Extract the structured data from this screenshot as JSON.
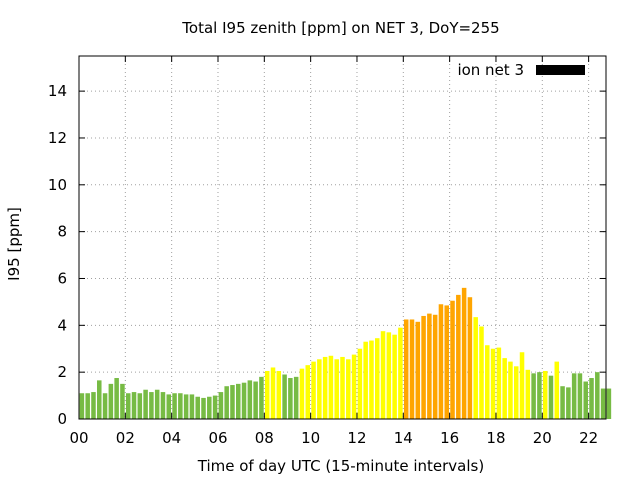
{
  "chart_data": {
    "type": "bar",
    "title": "Total I95 zenith [ppm] on NET 3, DoY=255",
    "xlabel": "Time of day UTC (15-minute intervals)",
    "ylabel": "I95 [ppm]",
    "xlim": [
      0,
      22.75
    ],
    "ylim": [
      0,
      15.5
    ],
    "x_ticks": [
      "00",
      "02",
      "04",
      "06",
      "08",
      "10",
      "12",
      "14",
      "16",
      "18",
      "20",
      "22"
    ],
    "y_ticks": [
      "0",
      "2",
      "4",
      "6",
      "8",
      "10",
      "12",
      "14"
    ],
    "grid": true,
    "legend_position": "top-right",
    "series": [
      {
        "name": "ion net 3",
        "legend_color": "#000000",
        "values": [
          1.1,
          1.1,
          1.15,
          1.65,
          1.1,
          1.5,
          1.75,
          1.5,
          1.1,
          1.15,
          1.1,
          1.25,
          1.15,
          1.25,
          1.15,
          1.05,
          1.1,
          1.1,
          1.05,
          1.05,
          0.95,
          0.9,
          0.95,
          1.0,
          1.15,
          1.4,
          1.45,
          1.5,
          1.55,
          1.65,
          1.6,
          1.8,
          2.05,
          2.2,
          2.05,
          1.9,
          1.75,
          1.8,
          2.15,
          2.3,
          2.45,
          2.55,
          2.65,
          2.7,
          2.55,
          2.65,
          2.55,
          2.75,
          3.0,
          3.3,
          3.35,
          3.45,
          3.75,
          3.7,
          3.6,
          3.9,
          4.25,
          4.25,
          4.15,
          4.4,
          4.5,
          4.45,
          4.9,
          4.85,
          5.05,
          5.3,
          5.6,
          5.2,
          4.35,
          3.95,
          3.15,
          3.0,
          3.05,
          2.6,
          2.45,
          2.25,
          2.85,
          2.1,
          1.95,
          2.0,
          2.05,
          1.85,
          2.45,
          1.4,
          1.35,
          1.95,
          1.95,
          1.6,
          1.75,
          2.0,
          1.3,
          1.3
        ],
        "colors": [
          "#77bb44",
          "#77bb44",
          "#77bb44",
          "#77bb44",
          "#77bb44",
          "#77bb44",
          "#77bb44",
          "#77bb44",
          "#77bb44",
          "#77bb44",
          "#77bb44",
          "#77bb44",
          "#77bb44",
          "#77bb44",
          "#77bb44",
          "#77bb44",
          "#77bb44",
          "#77bb44",
          "#77bb44",
          "#77bb44",
          "#77bb44",
          "#77bb44",
          "#77bb44",
          "#77bb44",
          "#77bb44",
          "#77bb44",
          "#77bb44",
          "#77bb44",
          "#77bb44",
          "#77bb44",
          "#77bb44",
          "#77bb44",
          "#ffff00",
          "#ffff00",
          "#ffff00",
          "#77bb44",
          "#77bb44",
          "#77bb44",
          "#ffff00",
          "#ffff00",
          "#ffff00",
          "#ffff00",
          "#ffff00",
          "#ffff00",
          "#ffff00",
          "#ffff00",
          "#ffff00",
          "#ffff00",
          "#ffff00",
          "#ffff00",
          "#ffff00",
          "#ffff00",
          "#ffff00",
          "#ffff00",
          "#ffff00",
          "#ffff00",
          "#ffa500",
          "#ffa500",
          "#ffa500",
          "#ffa500",
          "#ffa500",
          "#ffa500",
          "#ffa500",
          "#ffa500",
          "#ffa500",
          "#ffa500",
          "#ffa500",
          "#ffa500",
          "#ffff00",
          "#ffff00",
          "#ffff00",
          "#ffff00",
          "#ffff00",
          "#ffff00",
          "#ffff00",
          "#ffff00",
          "#ffff00",
          "#ffff00",
          "#77bb44",
          "#77bb44",
          "#ffff00",
          "#77bb44",
          "#ffff00",
          "#77bb44",
          "#77bb44",
          "#77bb44",
          "#77bb44",
          "#77bb44",
          "#77bb44",
          "#77bb44",
          "#77bb44",
          "#77bb44"
        ]
      }
    ]
  }
}
